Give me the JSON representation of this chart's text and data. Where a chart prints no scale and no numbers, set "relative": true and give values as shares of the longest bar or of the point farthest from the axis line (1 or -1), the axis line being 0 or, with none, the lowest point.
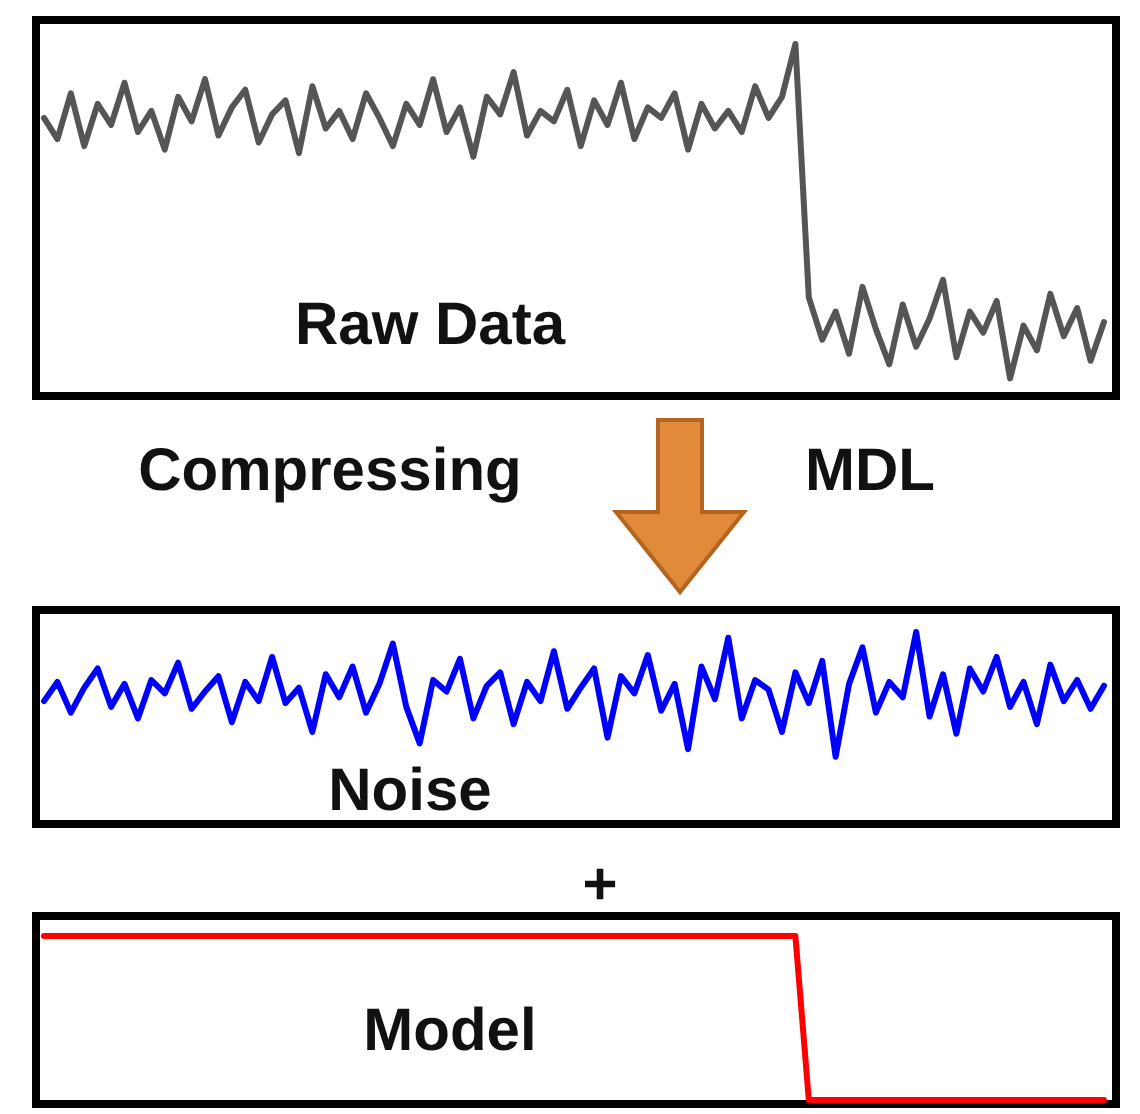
{
  "chart_data": [
    {
      "type": "line",
      "title": "Raw Data",
      "relative": true,
      "annotations": [
        "Compressing",
        "MDL"
      ],
      "categories": [
        null,
        null,
        null,
        null,
        null,
        null,
        null,
        null,
        null,
        null,
        null,
        null,
        null,
        null,
        null,
        null,
        null,
        null,
        null,
        null,
        null,
        null,
        null,
        null,
        null,
        null,
        null,
        null,
        null,
        null,
        null,
        null,
        null,
        null,
        null,
        null,
        null,
        null,
        null,
        null,
        null,
        null,
        null,
        null,
        null,
        null,
        null,
        null,
        null,
        null,
        null,
        null,
        null,
        null,
        null,
        null,
        null,
        null,
        null,
        null,
        null,
        null,
        null,
        null,
        null,
        null,
        null,
        null,
        null,
        null,
        null,
        null,
        null,
        null,
        null,
        null,
        null,
        null,
        null,
        null
      ],
      "series": [
        {
          "color": "#555555",
          "values": [
            0.79,
            0.73,
            0.86,
            0.71,
            0.83,
            0.77,
            0.89,
            0.75,
            0.81,
            0.7,
            0.85,
            0.78,
            0.9,
            0.74,
            0.82,
            0.87,
            0.72,
            0.8,
            0.84,
            0.69,
            0.88,
            0.76,
            0.81,
            0.73,
            0.86,
            0.79,
            0.71,
            0.83,
            0.77,
            0.9,
            0.75,
            0.82,
            0.68,
            0.85,
            0.8,
            0.92,
            0.74,
            0.81,
            0.78,
            0.87,
            0.71,
            0.84,
            0.77,
            0.89,
            0.73,
            0.82,
            0.79,
            0.86,
            0.7,
            0.83,
            0.76,
            0.81,
            0.75,
            0.88,
            0.79,
            0.85,
            1,
            0.28,
            0.16,
            0.24,
            0.12,
            0.31,
            0.19,
            0.09,
            0.26,
            0.14,
            0.22,
            0.33,
            0.11,
            0.24,
            0.18,
            0.27,
            0.05,
            0.2,
            0.13,
            0.29,
            0.17,
            0.25,
            0.1,
            0.21
          ]
        }
      ]
    },
    {
      "type": "line",
      "title": "Noise",
      "relative": true,
      "annotations": [
        "+"
      ],
      "categories": [
        null,
        null,
        null,
        null,
        null,
        null,
        null,
        null,
        null,
        null,
        null,
        null,
        null,
        null,
        null,
        null,
        null,
        null,
        null,
        null,
        null,
        null,
        null,
        null,
        null,
        null,
        null,
        null,
        null,
        null,
        null,
        null,
        null,
        null,
        null,
        null,
        null,
        null,
        null,
        null,
        null,
        null,
        null,
        null,
        null,
        null,
        null,
        null,
        null,
        null,
        null,
        null,
        null,
        null,
        null,
        null,
        null,
        null,
        null,
        null,
        null,
        null,
        null,
        null,
        null,
        null,
        null,
        null,
        null,
        null,
        null,
        null,
        null,
        null,
        null,
        null,
        null,
        null,
        null,
        null
      ],
      "series": [
        {
          "color": "#0000ff",
          "values": [
            0.64,
            0.74,
            0.58,
            0.71,
            0.81,
            0.61,
            0.73,
            0.55,
            0.75,
            0.68,
            0.84,
            0.6,
            0.69,
            0.77,
            0.53,
            0.74,
            0.64,
            0.87,
            0.63,
            0.71,
            0.48,
            0.78,
            0.66,
            0.82,
            0.58,
            0.73,
            0.94,
            0.61,
            0.42,
            0.75,
            0.69,
            0.86,
            0.55,
            0.72,
            0.79,
            0.52,
            0.74,
            0.64,
            0.9,
            0.6,
            0.71,
            0.81,
            0.45,
            0.77,
            0.68,
            0.88,
            0.59,
            0.73,
            0.39,
            0.82,
            0.65,
            0.97,
            0.55,
            0.75,
            0.7,
            0.48,
            0.79,
            0.63,
            0.85,
            0.35,
            0.73,
            0.92,
            0.58,
            0.74,
            0.66,
            1,
            0.56,
            0.78,
            0.47,
            0.81,
            0.69,
            0.87,
            0.61,
            0.74,
            0.52,
            0.83,
            0.64,
            0.75,
            0.6,
            0.72
          ]
        }
      ]
    },
    {
      "type": "line",
      "title": "Model",
      "relative": true,
      "categories": [
        null,
        null,
        null,
        null,
        null,
        null,
        null,
        null,
        null,
        null,
        null,
        null,
        null,
        null,
        null,
        null,
        null,
        null,
        null,
        null,
        null,
        null,
        null,
        null,
        null,
        null,
        null,
        null,
        null,
        null,
        null,
        null,
        null,
        null,
        null,
        null,
        null,
        null,
        null,
        null,
        null,
        null,
        null,
        null,
        null,
        null,
        null,
        null,
        null,
        null,
        null,
        null,
        null,
        null,
        null,
        null,
        null,
        null,
        null,
        null,
        null,
        null,
        null,
        null,
        null,
        null,
        null,
        null,
        null,
        null,
        null,
        null,
        null,
        null,
        null,
        null,
        null,
        null,
        null,
        null
      ],
      "series": [
        {
          "color": "#ff0000",
          "values": [
            1,
            1,
            1,
            1,
            1,
            1,
            1,
            1,
            1,
            1,
            1,
            1,
            1,
            1,
            1,
            1,
            1,
            1,
            1,
            1,
            1,
            1,
            1,
            1,
            1,
            1,
            1,
            1,
            1,
            1,
            1,
            1,
            1,
            1,
            1,
            1,
            1,
            1,
            1,
            1,
            1,
            1,
            1,
            1,
            1,
            1,
            1,
            1,
            1,
            1,
            1,
            1,
            1,
            1,
            1,
            1,
            1,
            0,
            0,
            0,
            0,
            0,
            0,
            0,
            0,
            0,
            0,
            0,
            0,
            0,
            0,
            0,
            0,
            0,
            0,
            0,
            0,
            0,
            0,
            0
          ]
        }
      ]
    }
  ]
}
